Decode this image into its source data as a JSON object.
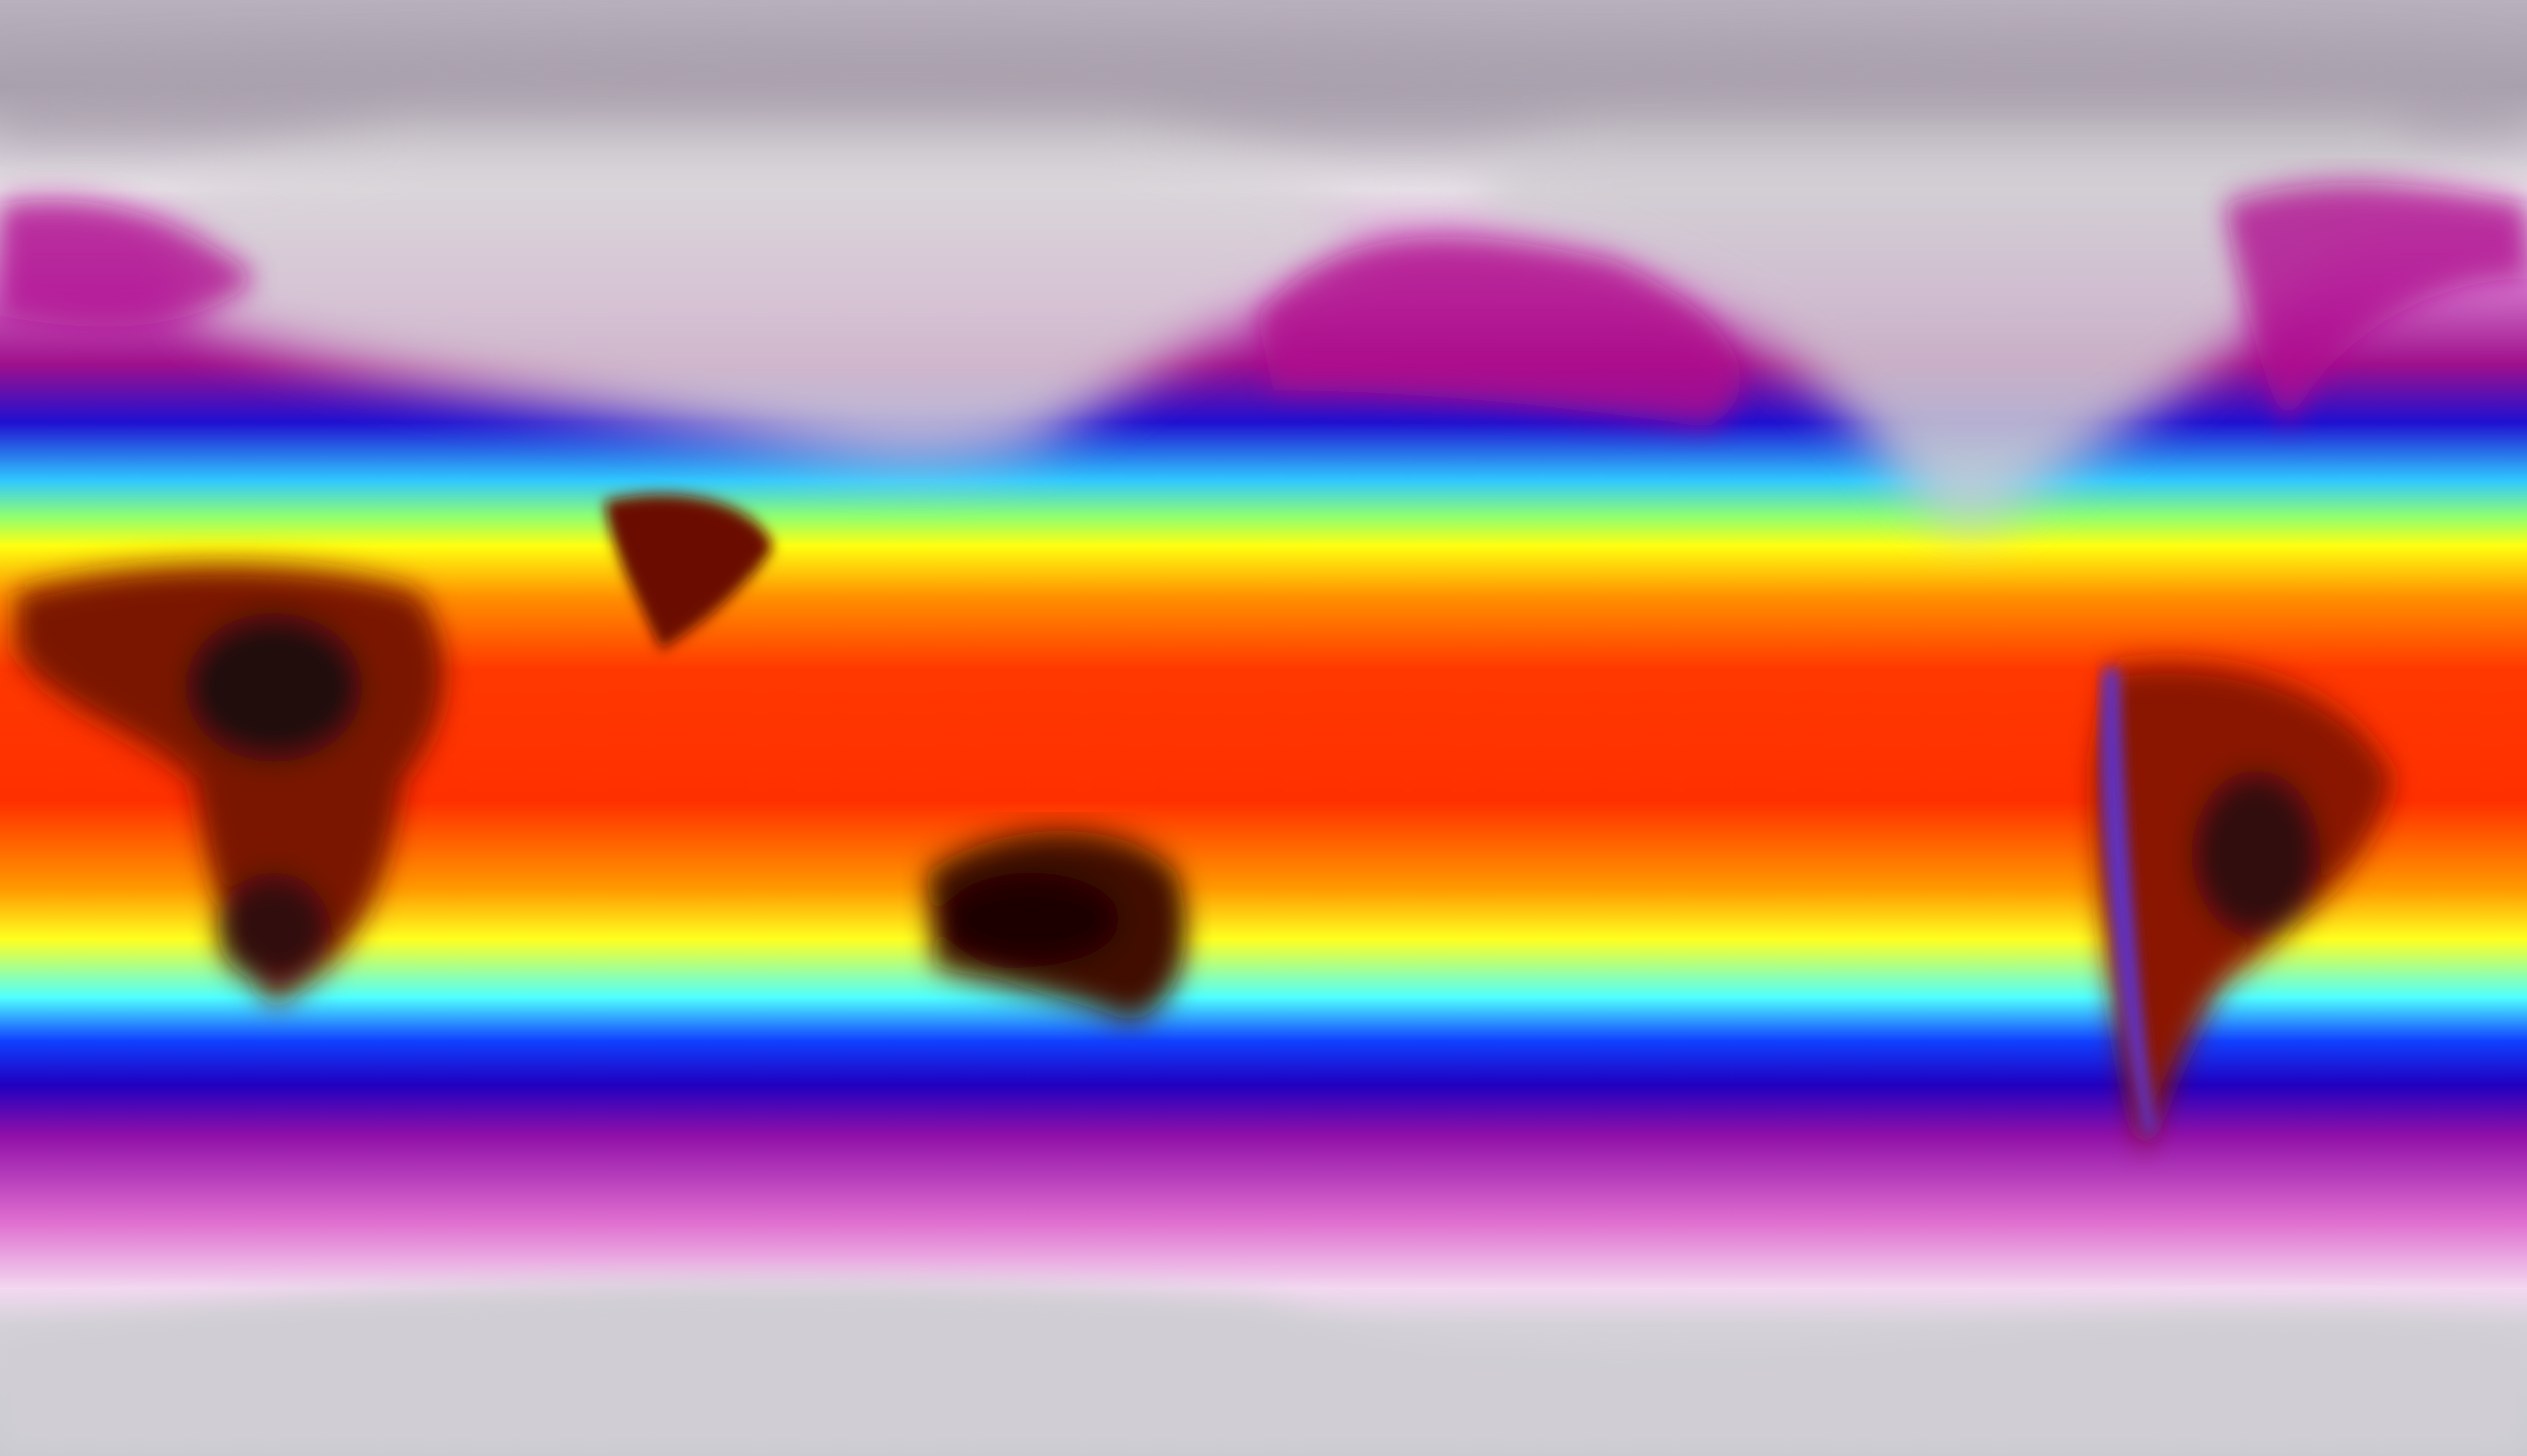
{
  "map": {
    "projection": "equirectangular",
    "palette": {
      "polar_grey": "#c8c4cc",
      "ice_white": "#f0e8f0",
      "cold_magenta": "#b0208f",
      "deep_blue": "#1808d0",
      "cyan": "#30d8ff",
      "yellow": "#ffff10",
      "orange": "#ff8a00",
      "red": "#ff2a00",
      "hot_dark": "#200808"
    }
  }
}
